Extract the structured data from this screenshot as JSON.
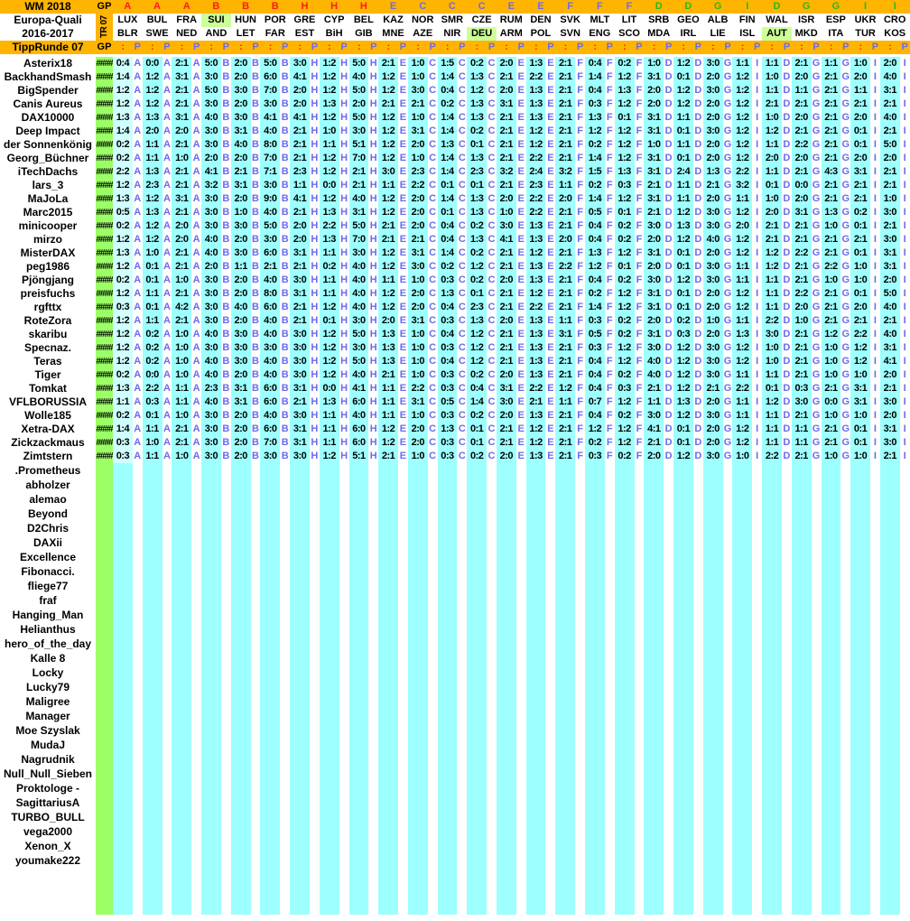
{
  "header": {
    "title": "WM 2018",
    "competition_line1": "Europa-Quali",
    "competition_line2": "2016-2017",
    "round_label": "TippRunde 07",
    "round_vertical": "TR 07",
    "gp_label": "GP",
    "tip_col_symbol": ":",
    "points_col_symbol": "P",
    "gp_placeholder": "####"
  },
  "colors": {
    "header_orange": "#FFB400",
    "gp_green": "#9CFF66",
    "tip_cyan": "#9EFFFF",
    "tip_cyan_first_col": "#CFFFFF",
    "team_highlight_green": "#CCFF99",
    "group_red": "#FF1A1A",
    "group_blue": "#6B6BF0",
    "group_green": "#1FBB1F",
    "data_letter_blue": "#6B6BF0",
    "name_black": "#000000"
  },
  "group_colors": {
    "A": "red",
    "B": "red",
    "H": "red",
    "C": "blue",
    "E": "blue",
    "F": "blue",
    "D": "green",
    "G": "green",
    "I": "green"
  },
  "matches": [
    {
      "group": "A",
      "home": "LUX",
      "away": "BLR",
      "highlight": null
    },
    {
      "group": "A",
      "home": "BUL",
      "away": "SWE",
      "highlight": null
    },
    {
      "group": "A",
      "home": "FRA",
      "away": "NED",
      "highlight": null
    },
    {
      "group": "B",
      "home": "SUI",
      "away": "AND",
      "highlight": "home"
    },
    {
      "group": "B",
      "home": "HUN",
      "away": "LET",
      "highlight": null
    },
    {
      "group": "B",
      "home": "POR",
      "away": "FAR",
      "highlight": null
    },
    {
      "group": "H",
      "home": "GRE",
      "away": "EST",
      "highlight": null
    },
    {
      "group": "H",
      "home": "CYP",
      "away": "BiH",
      "highlight": null
    },
    {
      "group": "H",
      "home": "BEL",
      "away": "GIB",
      "highlight": null
    },
    {
      "group": "E",
      "home": "KAZ",
      "away": "MNE",
      "highlight": null
    },
    {
      "group": "C",
      "home": "NOR",
      "away": "AZE",
      "highlight": null
    },
    {
      "group": "C",
      "home": "SMR",
      "away": "NIR",
      "highlight": null
    },
    {
      "group": "C",
      "home": "CZE",
      "away": "DEU",
      "highlight": "away"
    },
    {
      "group": "E",
      "home": "RUM",
      "away": "ARM",
      "highlight": null
    },
    {
      "group": "E",
      "home": "DEN",
      "away": "POL",
      "highlight": null
    },
    {
      "group": "F",
      "home": "SVK",
      "away": "SVN",
      "highlight": null
    },
    {
      "group": "F",
      "home": "MLT",
      "away": "ENG",
      "highlight": null
    },
    {
      "group": "F",
      "home": "LIT",
      "away": "SCO",
      "highlight": null
    },
    {
      "group": "D",
      "home": "SRB",
      "away": "MDA",
      "highlight": null
    },
    {
      "group": "D",
      "home": "GEO",
      "away": "IRL",
      "highlight": null
    },
    {
      "group": "G",
      "home": "ALB",
      "away": "LIE",
      "highlight": null
    },
    {
      "group": "I",
      "home": "FIN",
      "away": "ISL",
      "highlight": null
    },
    {
      "group": "D",
      "home": "WAL",
      "away": "AUT",
      "highlight": "away"
    },
    {
      "group": "G",
      "home": "ISR",
      "away": "MKD",
      "highlight": null
    },
    {
      "group": "G",
      "home": "ESP",
      "away": "ITA",
      "highlight": null
    },
    {
      "group": "I",
      "home": "UKR",
      "away": "TUR",
      "highlight": null
    },
    {
      "group": "I",
      "home": "CRO",
      "away": "KOS",
      "highlight": null
    }
  ],
  "players_with_tips": [
    {
      "name": "Asterix18",
      "tips": [
        "0:4",
        "0:0",
        "2:1",
        "5:0",
        "2:0",
        "5:0",
        "3:0",
        "1:2",
        "5:0",
        "2:1",
        "1:0",
        "1:5",
        "0:2",
        "2:0",
        "1:3",
        "2:1",
        "0:4",
        "0:2",
        "1:0",
        "1:2",
        "3:0",
        "1:1",
        "1:1",
        "2:1",
        "1:1",
        "1:0",
        "2:0"
      ]
    },
    {
      "name": "BackhandSmash",
      "tips": [
        "1:4",
        "1:2",
        "3:1",
        "3:0",
        "2:0",
        "6:0",
        "4:1",
        "1:2",
        "4:0",
        "1:2",
        "1:0",
        "1:4",
        "1:3",
        "2:1",
        "2:2",
        "2:1",
        "1:4",
        "1:2",
        "3:1",
        "0:1",
        "2:0",
        "1:2",
        "1:0",
        "2:0",
        "2:1",
        "2:0",
        "4:0"
      ]
    },
    {
      "name": "BigSpender",
      "tips": [
        "1:2",
        "1:2",
        "2:1",
        "5:0",
        "3:0",
        "7:0",
        "2:0",
        "1:2",
        "5:0",
        "1:2",
        "3:0",
        "0:4",
        "1:2",
        "2:0",
        "1:3",
        "2:1",
        "0:4",
        "1:3",
        "2:0",
        "1:2",
        "3:0",
        "1:2",
        "1:1",
        "1:1",
        "2:1",
        "1:1",
        "3:1"
      ]
    },
    {
      "name": "Canis Aureus",
      "tips": [
        "1:2",
        "1:2",
        "2:1",
        "3:0",
        "2:0",
        "3:0",
        "2:0",
        "1:3",
        "2:0",
        "2:1",
        "2:1",
        "0:2",
        "1:3",
        "3:1",
        "1:3",
        "2:1",
        "0:3",
        "1:2",
        "2:0",
        "1:2",
        "2:0",
        "1:2",
        "2:1",
        "2:1",
        "2:1",
        "2:1",
        "2:1"
      ]
    },
    {
      "name": "DAX10000",
      "tips": [
        "1:3",
        "1:3",
        "3:1",
        "4:0",
        "3:0",
        "4:1",
        "4:1",
        "1:2",
        "5:0",
        "1:2",
        "1:0",
        "1:4",
        "1:3",
        "2:1",
        "1:3",
        "2:1",
        "1:3",
        "0:1",
        "3:1",
        "1:1",
        "2:0",
        "1:2",
        "1:0",
        "2:0",
        "2:1",
        "2:0",
        "4:0"
      ]
    },
    {
      "name": "Deep Impact",
      "tips": [
        "1:4",
        "2:0",
        "2:0",
        "3:0",
        "3:1",
        "4:0",
        "2:1",
        "1:0",
        "3:0",
        "1:2",
        "3:1",
        "1:4",
        "0:2",
        "2:1",
        "1:2",
        "2:1",
        "1:2",
        "1:2",
        "3:1",
        "0:1",
        "3:0",
        "1:2",
        "1:2",
        "2:1",
        "2:1",
        "0:1",
        "2:1"
      ]
    },
    {
      "name": "der Sonnenkönig",
      "tips": [
        "0:2",
        "1:1",
        "2:1",
        "3:0",
        "4:0",
        "8:0",
        "2:1",
        "1:1",
        "5:1",
        "1:2",
        "2:0",
        "1:3",
        "0:1",
        "2:1",
        "1:2",
        "2:1",
        "0:2",
        "1:2",
        "1:0",
        "1:1",
        "2:0",
        "1:2",
        "1:1",
        "2:2",
        "2:1",
        "0:1",
        "5:0"
      ]
    },
    {
      "name": "Georg_Büchner",
      "tips": [
        "0:2",
        "1:1",
        "1:0",
        "2:0",
        "2:0",
        "7:0",
        "2:1",
        "1:2",
        "7:0",
        "1:2",
        "1:0",
        "1:4",
        "1:3",
        "2:1",
        "2:2",
        "2:1",
        "1:4",
        "1:2",
        "3:1",
        "0:1",
        "2:0",
        "1:2",
        "2:0",
        "2:0",
        "2:1",
        "2:0",
        "2:0"
      ]
    },
    {
      "name": "iTechDachs",
      "tips": [
        "2:2",
        "1:3",
        "2:1",
        "4:1",
        "2:1",
        "7:1",
        "2:3",
        "1:2",
        "2:1",
        "3:0",
        "2:3",
        "1:4",
        "2:3",
        "3:2",
        "2:4",
        "3:2",
        "1:5",
        "1:3",
        "3:1",
        "2:4",
        "1:3",
        "2:2",
        "1:1",
        "2:1",
        "4:3",
        "3:1",
        "2:1"
      ]
    },
    {
      "name": "lars_3",
      "tips": [
        "1:2",
        "2:3",
        "2:1",
        "3:2",
        "3:1",
        "3:0",
        "1:1",
        "0:0",
        "2:1",
        "1:1",
        "2:2",
        "0:1",
        "0:1",
        "2:1",
        "2:3",
        "1:1",
        "0:2",
        "0:3",
        "2:1",
        "1:1",
        "2:1",
        "3:2",
        "0:1",
        "0:0",
        "2:1",
        "2:1",
        "2:1"
      ]
    },
    {
      "name": "MaJoLa",
      "tips": [
        "1:3",
        "1:2",
        "3:1",
        "3:0",
        "2:0",
        "9:0",
        "4:1",
        "1:2",
        "4:0",
        "1:2",
        "2:0",
        "1:4",
        "1:3",
        "2:0",
        "2:2",
        "2:0",
        "1:4",
        "1:2",
        "3:1",
        "1:1",
        "2:0",
        "1:1",
        "1:0",
        "2:0",
        "2:1",
        "2:1",
        "1:0"
      ]
    },
    {
      "name": "Marc2015",
      "tips": [
        "0:5",
        "1:3",
        "2:1",
        "3:0",
        "1:0",
        "4:0",
        "2:1",
        "1:3",
        "3:1",
        "1:2",
        "2:0",
        "0:1",
        "1:3",
        "1:0",
        "2:2",
        "2:1",
        "0:5",
        "0:1",
        "2:1",
        "1:2",
        "3:0",
        "1:2",
        "2:0",
        "3:1",
        "1:3",
        "0:2",
        "3:0"
      ]
    },
    {
      "name": "minicooper",
      "tips": [
        "0:2",
        "1:2",
        "2:0",
        "3:0",
        "3:0",
        "5:0",
        "2:0",
        "2:2",
        "5:0",
        "2:1",
        "2:0",
        "0:4",
        "0:2",
        "3:0",
        "1:3",
        "2:1",
        "0:4",
        "0:2",
        "3:0",
        "1:3",
        "3:0",
        "2:0",
        "2:1",
        "2:1",
        "1:0",
        "0:1",
        "2:1"
      ]
    },
    {
      "name": "mirzo",
      "tips": [
        "1:2",
        "1:2",
        "2:0",
        "4:0",
        "2:0",
        "3:0",
        "2:0",
        "1:3",
        "7:0",
        "2:1",
        "2:1",
        "0:4",
        "1:3",
        "4:1",
        "1:3",
        "2:0",
        "0:4",
        "0:2",
        "2:0",
        "1:2",
        "4:0",
        "1:2",
        "2:1",
        "2:1",
        "2:1",
        "2:1",
        "3:0"
      ]
    },
    {
      "name": "MisterDAX",
      "tips": [
        "1:3",
        "1:0",
        "2:1",
        "4:0",
        "3:0",
        "6:0",
        "3:1",
        "1:1",
        "3:0",
        "1:2",
        "3:1",
        "1:4",
        "0:2",
        "2:1",
        "1:2",
        "2:1",
        "1:3",
        "1:2",
        "3:1",
        "0:1",
        "2:0",
        "1:2",
        "1:2",
        "2:2",
        "2:1",
        "0:1",
        "3:1"
      ]
    },
    {
      "name": "peg1986",
      "tips": [
        "1:2",
        "0:1",
        "2:1",
        "2:0",
        "1:1",
        "2:1",
        "2:1",
        "0:2",
        "4:0",
        "1:2",
        "3:0",
        "0:2",
        "1:2",
        "2:1",
        "1:3",
        "2:2",
        "1:2",
        "0:1",
        "2:0",
        "0:1",
        "3:0",
        "1:1",
        "1:2",
        "2:1",
        "2:2",
        "1:0",
        "3:1"
      ]
    },
    {
      "name": "Pjöngjang",
      "tips": [
        "0:2",
        "0:1",
        "1:0",
        "3:0",
        "2:0",
        "4:0",
        "3:0",
        "1:1",
        "4:0",
        "1:1",
        "1:0",
        "0:3",
        "0:2",
        "2:0",
        "1:3",
        "2:1",
        "0:4",
        "0:2",
        "3:0",
        "1:2",
        "3:0",
        "1:1",
        "1:1",
        "2:1",
        "1:0",
        "1:0",
        "2:0"
      ]
    },
    {
      "name": "preisfuchs",
      "tips": [
        "1:2",
        "1:1",
        "2:1",
        "3:0",
        "2:0",
        "8:0",
        "3:1",
        "1:1",
        "4:0",
        "1:2",
        "2:0",
        "1:3",
        "0:1",
        "2:1",
        "1:2",
        "2:1",
        "0:2",
        "1:2",
        "3:1",
        "0:1",
        "2:0",
        "1:2",
        "1:1",
        "2:2",
        "2:1",
        "0:1",
        "5:0"
      ]
    },
    {
      "name": "rgfttx",
      "tips": [
        "0:3",
        "0:1",
        "4:2",
        "3:0",
        "4:0",
        "6:0",
        "2:1",
        "1:2",
        "4:0",
        "1:2",
        "2:0",
        "0:4",
        "2:3",
        "2:1",
        "2:2",
        "2:1",
        "1:4",
        "1:2",
        "3:1",
        "0:1",
        "2:0",
        "1:2",
        "1:1",
        "2:0",
        "2:1",
        "2:0",
        "4:0"
      ]
    },
    {
      "name": "RoteZora",
      "tips": [
        "1:2",
        "1:1",
        "2:1",
        "3:0",
        "2:0",
        "4:0",
        "2:1",
        "0:1",
        "3:0",
        "2:0",
        "3:1",
        "0:3",
        "1:3",
        "2:0",
        "1:3",
        "1:1",
        "0:3",
        "0:2",
        "2:0",
        "0:2",
        "1:0",
        "1:1",
        "2:2",
        "1:0",
        "2:1",
        "2:1",
        "2:1"
      ]
    },
    {
      "name": "skaribu",
      "tips": [
        "1:2",
        "0:2",
        "1:0",
        "4:0",
        "3:0",
        "4:0",
        "3:0",
        "1:2",
        "5:0",
        "1:3",
        "1:0",
        "0:4",
        "1:2",
        "2:1",
        "1:3",
        "3:1",
        "0:5",
        "0:2",
        "3:1",
        "0:3",
        "2:0",
        "1:3",
        "3:0",
        "2:1",
        "1:2",
        "2:2",
        "4:0"
      ]
    },
    {
      "name": "Specnaz.",
      "tips": [
        "1:2",
        "0:2",
        "1:0",
        "3:0",
        "3:0",
        "3:0",
        "3:0",
        "1:2",
        "3:0",
        "1:3",
        "1:0",
        "0:3",
        "1:2",
        "2:1",
        "1:3",
        "2:1",
        "0:3",
        "1:2",
        "3:0",
        "1:2",
        "3:0",
        "1:2",
        "1:0",
        "2:1",
        "1:0",
        "1:2",
        "3:1"
      ]
    },
    {
      "name": "Teras",
      "tips": [
        "1:2",
        "0:2",
        "1:0",
        "4:0",
        "3:0",
        "4:0",
        "3:0",
        "1:2",
        "5:0",
        "1:3",
        "1:0",
        "0:4",
        "1:2",
        "2:1",
        "1:3",
        "2:1",
        "0:4",
        "1:2",
        "4:0",
        "1:2",
        "3:0",
        "1:2",
        "1:0",
        "2:1",
        "1:0",
        "1:2",
        "4:1"
      ]
    },
    {
      "name": "Tiger",
      "tips": [
        "0:2",
        "0:0",
        "1:0",
        "4:0",
        "2:0",
        "4:0",
        "3:0",
        "1:2",
        "4:0",
        "2:1",
        "1:0",
        "0:3",
        "0:2",
        "2:0",
        "1:3",
        "2:1",
        "0:4",
        "0:2",
        "4:0",
        "1:2",
        "3:0",
        "1:1",
        "1:1",
        "2:1",
        "1:0",
        "1:0",
        "2:0"
      ]
    },
    {
      "name": "Tomkat",
      "tips": [
        "1:3",
        "2:2",
        "1:1",
        "2:3",
        "3:1",
        "6:0",
        "3:1",
        "0:0",
        "4:1",
        "1:1",
        "2:2",
        "0:3",
        "0:4",
        "3:1",
        "2:2",
        "1:2",
        "0:4",
        "0:3",
        "2:1",
        "1:2",
        "2:1",
        "2:2",
        "0:1",
        "0:3",
        "2:1",
        "3:1",
        "2:1"
      ]
    },
    {
      "name": "VFLBORUSSIA",
      "tips": [
        "1:1",
        "0:3",
        "1:1",
        "4:0",
        "3:1",
        "6:0",
        "2:1",
        "1:3",
        "6:0",
        "1:1",
        "3:1",
        "0:5",
        "1:4",
        "3:0",
        "2:1",
        "1:1",
        "0:7",
        "1:2",
        "1:1",
        "1:3",
        "2:0",
        "1:1",
        "1:2",
        "3:0",
        "0:0",
        "3:1",
        "3:0"
      ]
    },
    {
      "name": "Wolle185",
      "tips": [
        "0:2",
        "0:1",
        "1:0",
        "3:0",
        "2:0",
        "4:0",
        "3:0",
        "1:1",
        "4:0",
        "1:1",
        "1:0",
        "0:3",
        "0:2",
        "2:0",
        "1:3",
        "2:1",
        "0:4",
        "0:2",
        "3:0",
        "1:2",
        "3:0",
        "1:1",
        "1:1",
        "2:1",
        "1:0",
        "1:0",
        "2:0"
      ]
    },
    {
      "name": "Xetra-DAX",
      "tips": [
        "1:4",
        "1:1",
        "2:1",
        "3:0",
        "2:0",
        "6:0",
        "3:1",
        "1:1",
        "6:0",
        "1:2",
        "2:0",
        "1:3",
        "0:1",
        "2:1",
        "1:2",
        "2:1",
        "1:2",
        "1:2",
        "4:1",
        "0:1",
        "2:0",
        "1:2",
        "1:1",
        "1:1",
        "2:1",
        "0:1",
        "3:1"
      ]
    },
    {
      "name": "Zickzackmaus",
      "tips": [
        "0:3",
        "1:0",
        "2:1",
        "3:0",
        "2:0",
        "7:0",
        "3:1",
        "1:1",
        "6:0",
        "1:2",
        "2:0",
        "0:3",
        "0:1",
        "2:1",
        "1:2",
        "2:1",
        "0:2",
        "1:2",
        "2:1",
        "0:1",
        "2:0",
        "1:2",
        "1:1",
        "1:1",
        "2:1",
        "0:1",
        "3:0"
      ]
    },
    {
      "name": "Zimtstern",
      "tips": [
        "0:3",
        "1:1",
        "1:0",
        "3:0",
        "2:0",
        "3:0",
        "3:0",
        "1:2",
        "5:1",
        "2:1",
        "1:0",
        "0:3",
        "0:2",
        "2:0",
        "1:3",
        "2:1",
        "0:3",
        "0:2",
        "2:0",
        "1:2",
        "3:0",
        "1:0",
        "2:2",
        "2:1",
        "1:0",
        "1:0",
        "2:1"
      ]
    }
  ],
  "players_without_tips": [
    ".Prometheus",
    "abholzer",
    "alemao",
    "Beyond",
    "D2Chris",
    "DAXii",
    "Excellence",
    "Fibonacci.",
    "fliege77",
    "fraf",
    "Hanging_Man",
    "Helianthus",
    "hero_of_the_day",
    "Kalle 8",
    "Locky",
    "Lucky79",
    "Maligree",
    "Manager",
    "Moe Szyslak",
    "MudaJ",
    "Nagrudnik",
    "Null_Null_Sieben",
    "Proktologe -",
    "SagittariusA",
    "TURBO_BULL",
    "vega2000",
    "Xenon_X",
    "youmake222"
  ]
}
